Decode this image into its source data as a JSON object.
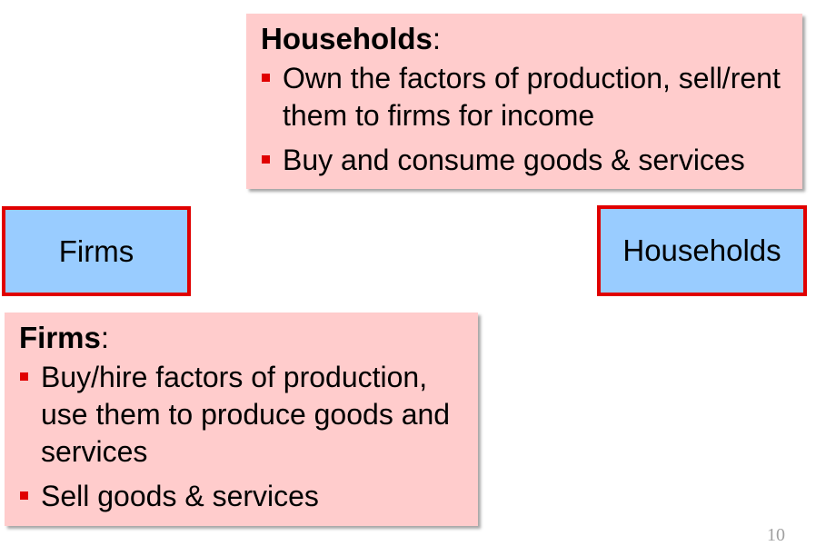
{
  "households_callout": {
    "title": "Households",
    "title_suffix": ":",
    "bullets": [
      "Own the factors of production, sell/rent them to firms for income",
      "Buy and consume goods & services"
    ]
  },
  "firms_callout": {
    "title": "Firms",
    "title_suffix": ":",
    "bullets": [
      "Buy/hire factors of production, use them to produce goods and services",
      "Sell goods & services"
    ]
  },
  "boxes": {
    "firms": "Firms",
    "households": "Households"
  },
  "slide_number": "10",
  "colors": {
    "callout_fill": "#ffcccc",
    "box_fill": "#99ccff",
    "box_border": "#e00000",
    "bullet": "#e00000"
  }
}
